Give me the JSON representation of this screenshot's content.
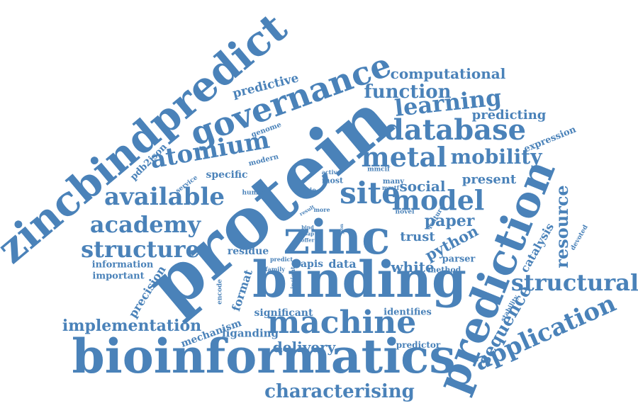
{
  "word_color": "#4a82b9",
  "words": [
    "zincbindpredict",
    "protein",
    "binding",
    "zinc",
    "bioinformatics",
    "prediction",
    "governance",
    "database",
    "machine",
    "atomium",
    "metal",
    "site",
    "model",
    "available",
    "academy",
    "structure",
    "learning",
    "function",
    "computational",
    "predictive",
    "mobility",
    "structural",
    "application",
    "sequence",
    "resource",
    "characterising",
    "implementation",
    "predicting",
    "social",
    "paper",
    "python",
    "delivery",
    "present",
    "trust",
    "white",
    "data",
    "format",
    "precision",
    "catalysis",
    "expression",
    "mechanism",
    "information",
    "important",
    "residue",
    "significant",
    "identifies",
    "liganding",
    "predictor",
    "specific",
    "pdb2json",
    "apis",
    "parser",
    "method",
    "genome",
    "modern",
    "service",
    "human",
    "most",
    "many",
    "mmcif",
    "active",
    "carrie",
    "result",
    "more",
    "predict",
    "family",
    "encode",
    "insight",
    "bind",
    "soap",
    "offer",
    "mmtf",
    "novel",
    "feature",
    "stability",
    "devoted",
    "json",
    "ace"
  ]
}
